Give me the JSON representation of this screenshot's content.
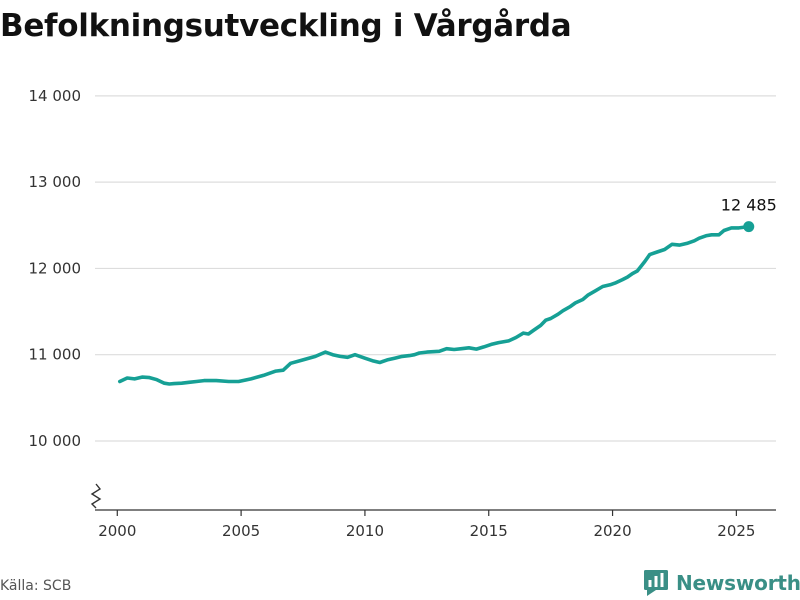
{
  "title": "Befolkningsutveckling i Vårgårda",
  "source": "Källa: SCB",
  "brand": "Newsworthy",
  "colors": {
    "line": "#16a095",
    "grid": "#dddddd",
    "axis": "#333333",
    "brand": "#3a8f86"
  },
  "chart_data": {
    "type": "line",
    "title": "Befolkningsutveckling i Vårgårda",
    "xlabel": "",
    "ylabel": "",
    "xlim": [
      1999.1,
      2026.6
    ],
    "ylim": [
      9200,
      14300
    ],
    "axis_break": true,
    "grid": "horizontal",
    "yticks": [
      10000,
      11000,
      12000,
      13000,
      14000
    ],
    "ytick_labels": [
      "10 000",
      "11 000",
      "12 000",
      "13 000",
      "14 000"
    ],
    "xticks": [
      2000,
      2005,
      2010,
      2015,
      2020,
      2025
    ],
    "xtick_labels": [
      "2000",
      "2005",
      "2010",
      "2015",
      "2020",
      "2025"
    ],
    "end_label": "12 485",
    "series": [
      {
        "x": [
          2000.1,
          2000.4,
          2000.7,
          2001.0,
          2001.3,
          2001.6,
          2001.9,
          2002.1,
          2002.3,
          2002.6,
          2002.9,
          2003.2,
          2003.5,
          2004.0,
          2004.5,
          2004.9,
          2005.4,
          2005.9,
          2006.4,
          2006.7,
          2007.0,
          2007.5,
          2008.0,
          2008.4,
          2008.7,
          2009.0,
          2009.3,
          2009.6,
          2010.0,
          2010.3,
          2010.6,
          2010.9,
          2011.2,
          2011.5,
          2011.8,
          2012.0,
          2012.2,
          2012.5,
          2013.0,
          2013.3,
          2013.6,
          2013.9,
          2014.2,
          2014.5,
          2014.8,
          2015.1,
          2015.4,
          2015.8,
          2016.1,
          2016.4,
          2016.6,
          2016.8,
          2017.1,
          2017.3,
          2017.5,
          2017.8,
          2018.0,
          2018.3,
          2018.5,
          2018.8,
          2019.0,
          2019.3,
          2019.6,
          2019.9,
          2020.1,
          2020.4,
          2020.6,
          2020.8,
          2021.0,
          2021.3,
          2021.5,
          2021.8,
          2022.1,
          2022.4,
          2022.7,
          2023.0,
          2023.3,
          2023.5,
          2023.8,
          2024.0,
          2024.3,
          2024.5,
          2024.8,
          2025.1,
          2025.5
        ],
        "values": [
          10690,
          10730,
          10720,
          10740,
          10735,
          10710,
          10670,
          10660,
          10665,
          10670,
          10680,
          10690,
          10700,
          10700,
          10690,
          10690,
          10720,
          10760,
          10810,
          10820,
          10900,
          10940,
          10980,
          11030,
          11000,
          10980,
          10970,
          11000,
          10960,
          10930,
          10910,
          10940,
          10960,
          10980,
          10990,
          11000,
          11020,
          11030,
          11040,
          11070,
          11060,
          11070,
          11080,
          11065,
          11090,
          11120,
          11140,
          11160,
          11200,
          11250,
          11240,
          11280,
          11340,
          11400,
          11420,
          11470,
          11510,
          11560,
          11600,
          11640,
          11690,
          11740,
          11790,
          11810,
          11830,
          11870,
          11900,
          11940,
          11970,
          12080,
          12160,
          12190,
          12220,
          12280,
          12270,
          12290,
          12320,
          12350,
          12380,
          12390,
          12390,
          12440,
          12470,
          12470,
          12485
        ]
      }
    ]
  }
}
